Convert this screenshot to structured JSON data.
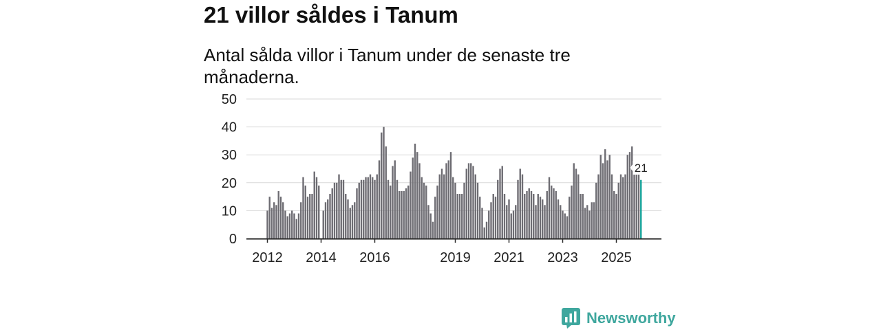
{
  "chart_data": {
    "type": "bar",
    "title": "21 villor såldes i Tanum",
    "subtitle": "Antal sålda villor i Tanum under de senaste tre månaderna.",
    "xlabel": "",
    "ylabel": "",
    "ylim": [
      0,
      50
    ],
    "yticks": [
      0,
      10,
      20,
      30,
      40,
      50
    ],
    "xticks": [
      2012,
      2014,
      2016,
      2019,
      2021,
      2023,
      2025
    ],
    "grid": true,
    "frequency_note": null,
    "highlight": {
      "label": "21",
      "year": 2025,
      "month": 12
    },
    "series": [
      {
        "year": 2012,
        "values": [
          10,
          15,
          11,
          13,
          12,
          17,
          15,
          13,
          10,
          8,
          9,
          10
        ]
      },
      {
        "year": 2013,
        "values": [
          9,
          7,
          9,
          13,
          22,
          19,
          15,
          16,
          16,
          24,
          22,
          19
        ]
      },
      {
        "year": 2014,
        "values": [
          null,
          10,
          13,
          14,
          16,
          18,
          20,
          20,
          23,
          21,
          21,
          16
        ]
      },
      {
        "year": 2015,
        "values": [
          14,
          11,
          12,
          13,
          18,
          20,
          21,
          21,
          22,
          22,
          23,
          22
        ]
      },
      {
        "year": 2016,
        "values": [
          21,
          23,
          28,
          38,
          40,
          33,
          21,
          19,
          26,
          28,
          21,
          17
        ]
      },
      {
        "year": 2017,
        "values": [
          17,
          17,
          18,
          19,
          24,
          29,
          34,
          31,
          27,
          22,
          20,
          19
        ]
      },
      {
        "year": 2018,
        "values": [
          12,
          9,
          6,
          15,
          19,
          23,
          25,
          23,
          27,
          28,
          31,
          22
        ]
      },
      {
        "year": 2019,
        "values": [
          20,
          16,
          16,
          16,
          20,
          25,
          27,
          27,
          26,
          23,
          20,
          15
        ]
      },
      {
        "year": 2020,
        "values": [
          11,
          4,
          6,
          10,
          13,
          16,
          15,
          21,
          25,
          26,
          16,
          12
        ]
      },
      {
        "year": 2021,
        "values": [
          14,
          9,
          10,
          12,
          21,
          25,
          23,
          16,
          17,
          18,
          17,
          16
        ]
      },
      {
        "year": 2022,
        "values": [
          12,
          16,
          15,
          14,
          12,
          17,
          22,
          19,
          18,
          17,
          14,
          12
        ]
      },
      {
        "year": 2023,
        "values": [
          10,
          9,
          8,
          15,
          19,
          27,
          25,
          23,
          16,
          16,
          11,
          12
        ]
      },
      {
        "year": 2024,
        "values": [
          10,
          13,
          13,
          20,
          23,
          30,
          27,
          32,
          28,
          30,
          23,
          17
        ]
      },
      {
        "year": 2025,
        "values": [
          16,
          20,
          23,
          22,
          23,
          30,
          31,
          33,
          23,
          23,
          23,
          21
        ]
      }
    ]
  },
  "brand": {
    "name": "Newsworthy"
  },
  "colors": {
    "bar": "#6e6d73",
    "highlight": "#17a39b",
    "grid": "#d9d9d9",
    "axis": "#2a2a2a",
    "label_bg": "#ffffff"
  }
}
